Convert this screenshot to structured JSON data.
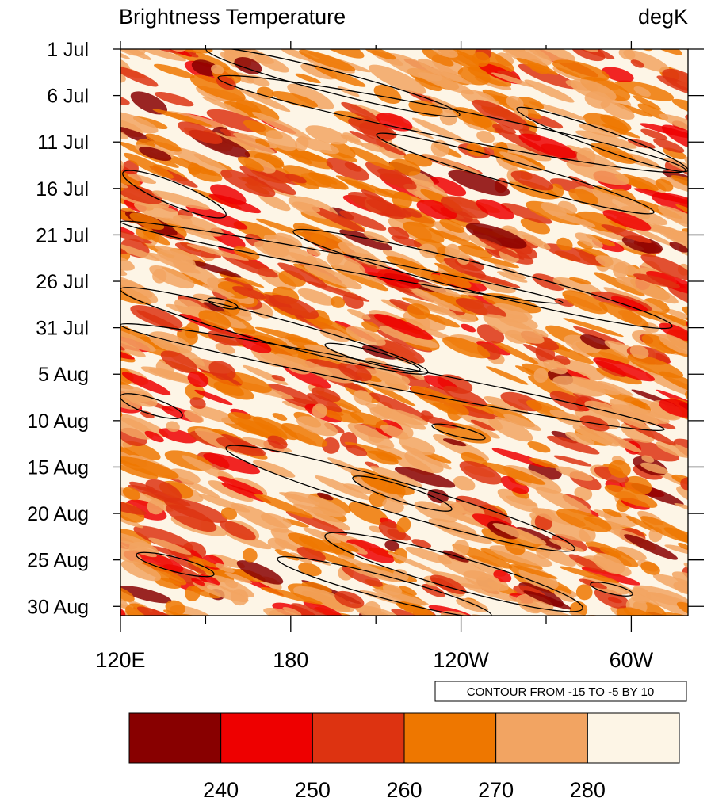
{
  "chart_data": {
    "type": "hovmoller",
    "title": "Brightness Temperature",
    "units": "degK",
    "xlim": [
      120,
      320
    ],
    "xticks": [
      {
        "value": 120,
        "label": "120E"
      },
      180,
      {
        "value": 240,
        "label": "120W"
      },
      {
        "value": 300,
        "label": "60W"
      }
    ],
    "xminorticks": [
      150,
      210,
      270
    ],
    "ylim": [
      0,
      61
    ],
    "yticks": [
      {
        "value": 0,
        "label": "1 Jul"
      },
      {
        "value": 5,
        "label": "6 Jul"
      },
      {
        "value": 10,
        "label": "11 Jul"
      },
      {
        "value": 15,
        "label": "16 Jul"
      },
      {
        "value": 20,
        "label": "21 Jul"
      },
      {
        "value": 25,
        "label": "26 Jul"
      },
      {
        "value": 30,
        "label": "31 Jul"
      },
      {
        "value": 35,
        "label": "5 Aug"
      },
      {
        "value": 40,
        "label": "10 Aug"
      },
      {
        "value": 45,
        "label": "15 Aug"
      },
      {
        "value": 50,
        "label": "20 Aug"
      },
      {
        "value": 55,
        "label": "25 Aug"
      },
      {
        "value": 60,
        "label": "30 Aug"
      }
    ],
    "contour_info": "CONTOUR FROM -15 TO -5 BY 10",
    "levels": [
      240,
      250,
      260,
      270,
      280
    ],
    "colors": [
      "#880000",
      "#ee0000",
      "#dd3311",
      "#ee7700",
      "#f2a462",
      "#fdf5e6"
    ]
  }
}
